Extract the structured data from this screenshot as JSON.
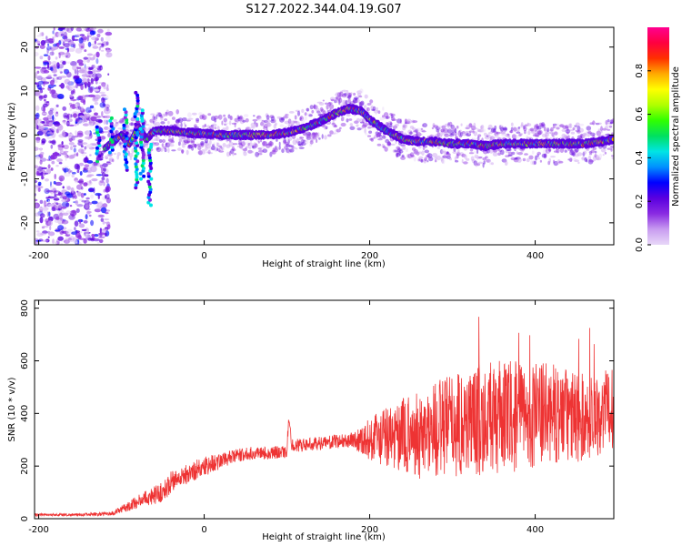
{
  "title": "S127.2022.344.04.19.G07",
  "chart_data": [
    {
      "type": "heatmap",
      "xlabel": "Height of straight line (km)",
      "ylabel": "Frequency (Hz)",
      "xlim": [
        -205,
        495
      ],
      "ylim": [
        -25,
        24.5
      ],
      "x_ticks": [
        -200,
        0,
        200,
        400
      ],
      "y_ticks": [
        -20,
        -10,
        0,
        10,
        20
      ],
      "ridge": {
        "x": [
          -120,
          -100,
          -90,
          -80,
          -70,
          -60,
          -40,
          -20,
          0,
          20,
          40,
          60,
          80,
          100,
          120,
          140,
          160,
          175,
          190,
          200,
          220,
          240,
          260,
          280,
          300,
          320,
          340,
          360,
          380,
          400,
          420,
          440,
          460,
          480,
          495
        ],
        "y": [
          -3,
          0,
          -2,
          2,
          -1,
          1,
          1,
          0.5,
          0.3,
          0,
          0,
          0,
          0,
          0.5,
          1.5,
          3,
          5,
          6,
          5.5,
          3.5,
          1,
          -1,
          -1.5,
          -1.5,
          -2,
          -2,
          -2.5,
          -2,
          -2,
          -2,
          -2,
          -2,
          -2,
          -1.5,
          -1
        ]
      },
      "colorbar": {
        "label": "Normalized spectral amplitude",
        "range": [
          0,
          1
        ],
        "ticks": [
          "0.0",
          "0.2",
          "0.4",
          "0.6",
          "0.8"
        ],
        "colors": [
          "#e8d8f8",
          "#c89cf0",
          "#8a2be2",
          "#5a00e0",
          "#0000ff",
          "#0090ff",
          "#00e5e5",
          "#00e060",
          "#30ff00",
          "#b0ff00",
          "#ffff00",
          "#ffaa00",
          "#ff3000",
          "#ff0040",
          "#ff0090"
        ]
      }
    },
    {
      "type": "line",
      "xlabel": "Height of straight line (km)",
      "ylabel": "SNR (10 * v/v)",
      "xlim": [
        -205,
        495
      ],
      "ylim": [
        0,
        830
      ],
      "x_ticks": [
        -200,
        0,
        200,
        400
      ],
      "y_ticks": [
        0,
        200,
        400,
        600,
        800
      ],
      "color": "#ee3333",
      "envelope": {
        "x": [
          -205,
          -150,
          -110,
          -90,
          -70,
          -50,
          -40,
          -20,
          0,
          20,
          40,
          60,
          80,
          100,
          102,
          106,
          120,
          150,
          180,
          200,
          220,
          260,
          300,
          340,
          380,
          420,
          460,
          495
        ],
        "mean": [
          15,
          15,
          20,
          50,
          80,
          100,
          140,
          170,
          200,
          220,
          240,
          250,
          250,
          255,
          370,
          280,
          280,
          290,
          300,
          300,
          310,
          320,
          360,
          380,
          390,
          400,
          380,
          420
        ],
        "spread": [
          5,
          5,
          8,
          20,
          30,
          40,
          40,
          40,
          40,
          30,
          25,
          25,
          25,
          25,
          30,
          25,
          25,
          25,
          30,
          80,
          120,
          170,
          200,
          220,
          210,
          190,
          170,
          150
        ]
      }
    }
  ]
}
